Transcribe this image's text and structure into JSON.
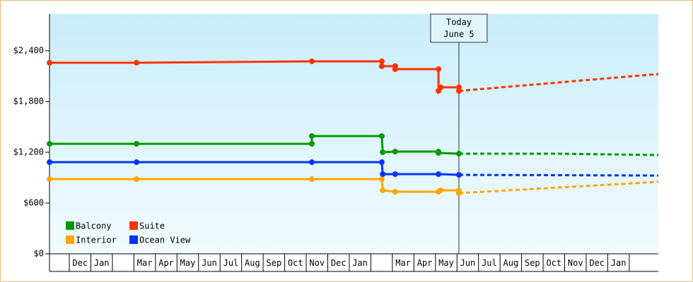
{
  "chart_data": {
    "type": "line",
    "categories": [
      null,
      "Dec",
      "Jan",
      null,
      "Mar",
      "Apr",
      "May",
      "Jun",
      "Jul",
      "Aug",
      "Sep",
      "Oct",
      "Nov",
      "Dec",
      "Jan",
      null,
      "Mar",
      "Apr",
      "May",
      "Jun",
      "Jul",
      "Aug",
      "Sep",
      "Oct",
      "Nov",
      "Dec",
      "Jan",
      null
    ],
    "xlim": [
      -0.92,
      27.35
    ],
    "ylim": [
      0,
      2833
    ],
    "yticks": [
      {
        "value": 0,
        "label": "$0"
      },
      {
        "value": 600,
        "label": "$600"
      },
      {
        "value": 1200,
        "label": "$1,200"
      },
      {
        "value": 1800,
        "label": "$1,800"
      },
      {
        "value": 2400,
        "label": "$2,400"
      }
    ],
    "legend": "bottom-left",
    "today": {
      "x": 18.09,
      "label": [
        "Today",
        "June 5"
      ]
    },
    "series": [
      {
        "name": "Balcony",
        "color": "#009900",
        "x": [
          -0.92,
          3.12,
          11.26,
          11.26,
          14.51,
          14.55,
          15.13,
          17.14,
          17.14,
          18.09
        ],
        "values": [
          1300,
          1300,
          1300,
          1392,
          1392,
          1200,
          1208,
          1208,
          1192,
          1183
        ],
        "forecast_x": [
          18.09,
          22.72,
          27.35
        ],
        "forecast_values": [
          1183,
          1183,
          1167
        ]
      },
      {
        "name": "Suite",
        "color": "#ff3300",
        "x": [
          -0.92,
          3.12,
          11.26,
          14.51,
          14.51,
          15.13,
          15.13,
          17.14,
          17.14,
          17.24,
          18.09,
          18.09
        ],
        "values": [
          2258,
          2258,
          2275,
          2275,
          2217,
          2217,
          2183,
          2183,
          1925,
          1967,
          1967,
          1925
        ],
        "forecast_x": [
          18.09,
          27.35
        ],
        "forecast_values": [
          1925,
          2125
        ]
      },
      {
        "name": "Interior",
        "color": "#ffa500",
        "x": [
          -0.92,
          3.12,
          11.26,
          14.51,
          14.55,
          15.13,
          17.14,
          17.24,
          18.09,
          18.09
        ],
        "values": [
          883,
          883,
          883,
          883,
          750,
          733,
          733,
          750,
          750,
          717
        ],
        "forecast_x": [
          18.09,
          27.35
        ],
        "forecast_values": [
          717,
          850
        ]
      },
      {
        "name": "Ocean View",
        "color": "#0033ff",
        "x": [
          -0.92,
          3.12,
          11.26,
          14.51,
          14.55,
          15.13,
          17.14,
          18.09
        ],
        "values": [
          1083,
          1083,
          1083,
          1083,
          942,
          942,
          942,
          933
        ],
        "forecast_x": [
          18.09,
          27.35
        ],
        "forecast_values": [
          933,
          925
        ]
      }
    ]
  }
}
